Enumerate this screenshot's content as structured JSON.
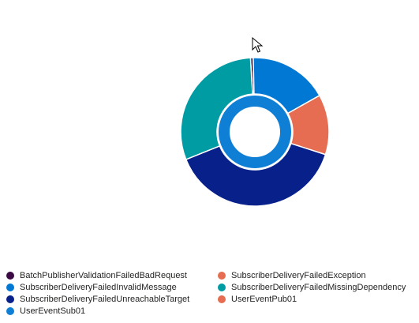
{
  "chart_data": {
    "type": "pie",
    "variant": "nested-donut",
    "outer_ring": {
      "slices": [
        {
          "label": "BatchPublisherValidationFailedBadRequest",
          "value": 0.6,
          "color": "#3b0a45"
        },
        {
          "label": "SubscriberDeliveryFailedInvalidMessage",
          "value": 17.2,
          "color": "#0078d4"
        },
        {
          "label": "SubscriberDeliveryFailedException",
          "value": 13.1,
          "color": "#e66c52"
        },
        {
          "label": "SubscriberDeliveryFailedUnreachableTarget",
          "value": 39.0,
          "color": "#07208a"
        },
        {
          "label": "SubscriberDeliveryFailedMissingDependency",
          "value": 30.1,
          "color": "#009ca4"
        }
      ]
    },
    "inner_ring": {
      "slices": [
        {
          "label": "UserEventSub01",
          "value": 100,
          "color": "#0f7fd6"
        }
      ]
    },
    "legend": {
      "placement": "bottom",
      "items": [
        {
          "label": "BatchPublisherValidationFailedBadRequest",
          "color": "#3b0a45"
        },
        {
          "label": "SubscriberDeliveryFailedException",
          "color": "#e66c52"
        },
        {
          "label": "SubscriberDeliveryFailedInvalidMessage",
          "color": "#0078d4"
        },
        {
          "label": "SubscriberDeliveryFailedMissingDependency",
          "color": "#009ca4"
        },
        {
          "label": "SubscriberDeliveryFailedUnreachableTarget",
          "color": "#07208a"
        },
        {
          "label": "UserEventPub01",
          "color": "#e66c52"
        },
        {
          "label": "UserEventSub01",
          "color": "#0f7fd6"
        }
      ]
    }
  }
}
